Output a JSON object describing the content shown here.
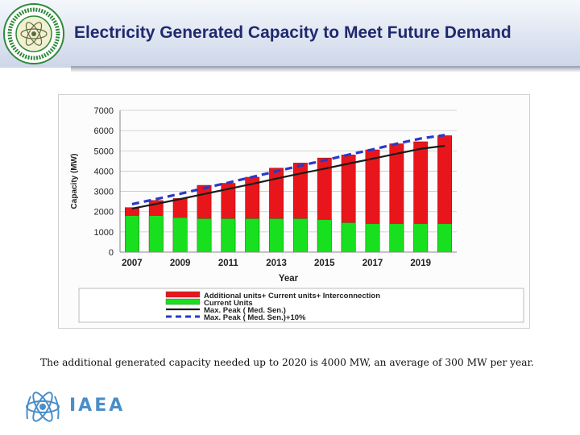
{
  "slide": {
    "title": "Electricity Generated Capacity to Meet Future Demand",
    "caption": "The additional generated capacity needed up to 2020  is  4000 MW, an average of 300 MW per year.",
    "footer_org": "IAEA"
  },
  "colors": {
    "additional": "#e8161b",
    "current": "#19e01f",
    "peak_line": "#1a1a1a",
    "peak_plus10": "#2a38c8",
    "title": "#1f2a6e",
    "iaea": "#4a8ec8"
  },
  "chart_data": {
    "type": "bar",
    "stacked": true,
    "title": "",
    "xlabel": "Year",
    "ylabel": "Capacity (MW)",
    "ylim": [
      0,
      7000
    ],
    "yticks": [
      0,
      1000,
      2000,
      3000,
      4000,
      5000,
      6000,
      7000
    ],
    "grid": true,
    "x_tick_labels": [
      "2007",
      "2009",
      "2011",
      "2013",
      "2015",
      "2017",
      "2019"
    ],
    "categories": [
      "2007",
      "2008",
      "2009",
      "2010",
      "2011",
      "2012",
      "2013",
      "2014",
      "2015",
      "2016",
      "2017",
      "2018",
      "2019",
      "2020"
    ],
    "series": [
      {
        "name": "Current Units",
        "kind": "bar",
        "values": [
          1800,
          1800,
          1700,
          1650,
          1650,
          1650,
          1650,
          1650,
          1600,
          1450,
          1400,
          1400,
          1400,
          1400
        ]
      },
      {
        "name": "Additional units+ Current units+ Interconnection",
        "kind": "bar-total",
        "values": [
          2200,
          2550,
          2650,
          3300,
          3400,
          3700,
          4150,
          4400,
          4650,
          4800,
          5050,
          5350,
          5450,
          5750
        ]
      },
      {
        "name": "Max. Peak ( Med. Sen.)",
        "kind": "line",
        "values": [
          2150,
          2380,
          2620,
          2870,
          3120,
          3370,
          3630,
          3880,
          4120,
          4370,
          4610,
          4860,
          5100,
          5250
        ]
      },
      {
        "name": "Max. Peak ( Med. Sen.)+10%",
        "kind": "dashed-line",
        "values": [
          2370,
          2620,
          2880,
          3160,
          3430,
          3710,
          3990,
          4270,
          4530,
          4810,
          5070,
          5350,
          5610,
          5780
        ]
      }
    ],
    "legend": {
      "position": "bottom",
      "entries": [
        "Additional units+ Current units+ Interconnection",
        "Current Units",
        "Max. Peak ( Med. Sen.)",
        "Max. Peak ( Med. Sen.)+10%"
      ]
    }
  }
}
